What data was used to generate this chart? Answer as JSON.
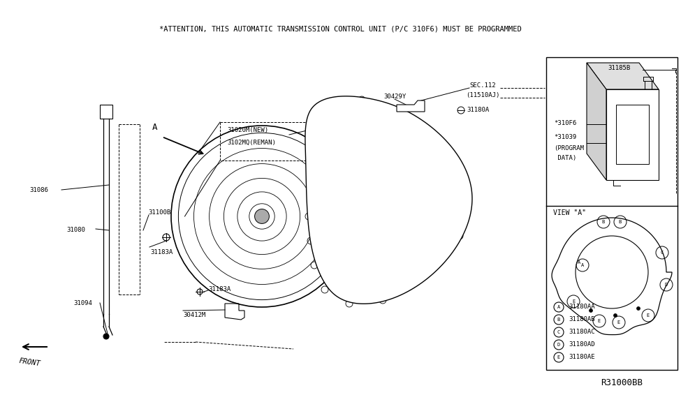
{
  "title": "*ATTENTION, THIS AUTOMATIC TRANSMISSION CONTROL UNIT (P/C 310F6) MUST BE PROGRAMMED",
  "bg_color": "#ffffff",
  "part_number": "R31000BB",
  "legend_items": [
    {
      "sym": "A",
      "code": "31180AA"
    },
    {
      "sym": "B",
      "code": "31180AB"
    },
    {
      "sym": "C",
      "code": "31180AC"
    },
    {
      "sym": "D",
      "code": "31180AD"
    },
    {
      "sym": "E",
      "code": "31180AE"
    }
  ],
  "fig_w": 9.75,
  "fig_h": 5.66,
  "dpi": 100
}
